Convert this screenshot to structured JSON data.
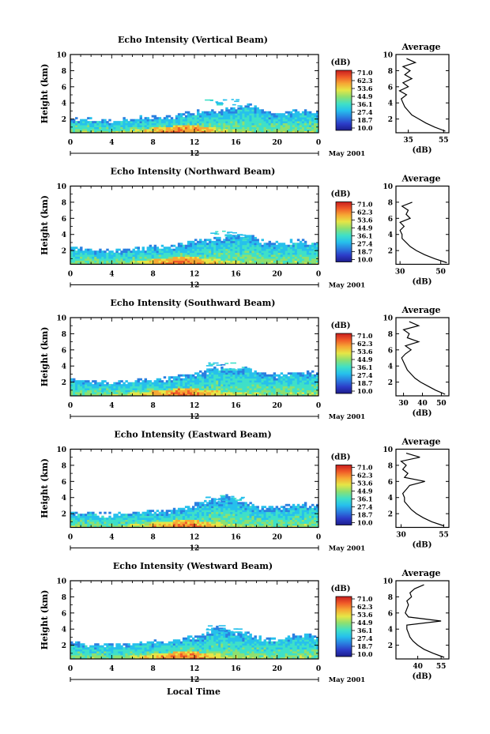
{
  "figure": {
    "xlabel": "Local Time",
    "xrange_label": "12",
    "date": "May 2001",
    "ylabel": "Height (km)",
    "colorbar_unit": "(dB)",
    "colorbar_ticks": [
      "71.0",
      "62.3",
      "53.6",
      "44.9",
      "36.1",
      "27.4",
      "18.7",
      "10.0"
    ],
    "avg_title": "Average",
    "avg_unit": "(dB)"
  },
  "colors": {
    "colormap": [
      "#1c1c8c",
      "#2c3cc8",
      "#2a7fe0",
      "#26c0ec",
      "#3fe0c8",
      "#8ee070",
      "#e6e646",
      "#f6a834",
      "#f05a28",
      "#c81e1e"
    ]
  },
  "chart_data": [
    {
      "type": "heatmap",
      "title": "Echo Intensity (Vertical Beam)",
      "x_ticks": [
        "0",
        "4",
        "8",
        "12",
        "16",
        "20",
        "0"
      ],
      "y_ticks": [
        "2",
        "4",
        "6",
        "8",
        "10"
      ],
      "xlim": [
        0,
        24
      ],
      "ylim": [
        0.3,
        10
      ],
      "clim": [
        10.0,
        71.0
      ],
      "echo_top_km": [
        2.2,
        2.1,
        2.0,
        1.9,
        1.9,
        2.0,
        2.1,
        2.3,
        2.3,
        2.2,
        2.5,
        2.7,
        3.0,
        3.1,
        3.2,
        3.3,
        3.6,
        3.9,
        3.4,
        3.0,
        2.9,
        3.0,
        3.1,
        3.0,
        3.0
      ],
      "avg_profile": {
        "xticks": [
          "35",
          "55"
        ],
        "xlim": [
          28,
          58
        ],
        "height_km": [
          0.5,
          1.0,
          1.5,
          2.0,
          2.5,
          3.0,
          3.5,
          4.0,
          4.5,
          5.0,
          5.5,
          6.0,
          6.5,
          7.0,
          7.5,
          8.0,
          8.5,
          9.0,
          9.5
        ],
        "db": [
          56,
          50,
          45,
          41,
          37,
          35,
          33,
          32,
          31,
          34,
          30,
          35,
          32,
          37,
          33,
          36,
          32,
          39,
          34
        ]
      }
    },
    {
      "type": "heatmap",
      "title": "Echo Intensity (Northward Beam)",
      "x_ticks": [
        "0",
        "4",
        "8",
        "12",
        "16",
        "20",
        "0"
      ],
      "y_ticks": [
        "2",
        "4",
        "6",
        "8",
        "10"
      ],
      "xlim": [
        0,
        24
      ],
      "ylim": [
        0.3,
        10
      ],
      "clim": [
        10.0,
        71.0
      ],
      "echo_top_km": [
        2.6,
        2.4,
        2.2,
        2.1,
        2.1,
        2.2,
        2.4,
        2.5,
        2.6,
        2.5,
        2.7,
        3.0,
        3.2,
        3.4,
        3.6,
        3.7,
        3.9,
        4.1,
        3.4,
        3.0,
        3.1,
        3.2,
        3.3,
        3.2,
        3.1
      ],
      "avg_profile": {
        "xticks": [
          "30",
          "50"
        ],
        "xlim": [
          28,
          54
        ],
        "height_km": [
          0.5,
          1.0,
          1.5,
          2.0,
          2.5,
          3.0,
          3.5,
          4.0,
          4.5,
          5.0,
          5.5,
          6.0,
          6.5,
          7.0,
          7.5,
          8.0
        ],
        "db": [
          53,
          47,
          42,
          38,
          35,
          33,
          31,
          31,
          30,
          32,
          30,
          35,
          33,
          34,
          31,
          36
        ]
      }
    },
    {
      "type": "heatmap",
      "title": "Echo Intensity (Southward Beam)",
      "x_ticks": [
        "0",
        "4",
        "8",
        "12",
        "16",
        "20",
        "0"
      ],
      "y_ticks": [
        "2",
        "4",
        "6",
        "8",
        "10"
      ],
      "xlim": [
        0,
        24
      ],
      "ylim": [
        0.3,
        10
      ],
      "clim": [
        10.0,
        71.0
      ],
      "echo_top_km": [
        2.4,
        2.3,
        2.2,
        2.1,
        2.1,
        2.2,
        2.3,
        2.4,
        2.5,
        2.5,
        2.7,
        3.0,
        3.2,
        3.4,
        3.9,
        4.0,
        3.8,
        3.9,
        3.3,
        3.0,
        3.0,
        3.2,
        3.4,
        3.3,
        3.2
      ],
      "avg_profile": {
        "xticks": [
          "30",
          "40",
          "50"
        ],
        "xlim": [
          26,
          54
        ],
        "height_km": [
          0.5,
          1.0,
          1.5,
          2.0,
          2.5,
          3.0,
          3.5,
          4.0,
          4.5,
          5.0,
          5.5,
          6.0,
          6.5,
          7.0,
          7.5,
          8.0,
          8.5,
          9.0,
          9.5
        ],
        "db": [
          52,
          47,
          43,
          39,
          36,
          34,
          32,
          31,
          30,
          29,
          31,
          34,
          31,
          38,
          32,
          33,
          30,
          38,
          33
        ]
      }
    },
    {
      "type": "heatmap",
      "title": "Echo Intensity (Eastward Beam)",
      "x_ticks": [
        "0",
        "4",
        "8",
        "12",
        "16",
        "20",
        "0"
      ],
      "y_ticks": [
        "2",
        "4",
        "6",
        "8",
        "10"
      ],
      "xlim": [
        0,
        24
      ],
      "ylim": [
        0.3,
        10
      ],
      "clim": [
        10.0,
        71.0
      ],
      "echo_top_km": [
        2.3,
        2.2,
        2.1,
        2.0,
        2.0,
        2.1,
        2.2,
        2.4,
        2.4,
        2.3,
        2.6,
        2.9,
        3.2,
        3.6,
        3.8,
        4.2,
        3.7,
        3.5,
        3.0,
        2.8,
        2.9,
        3.1,
        3.3,
        3.2,
        3.0
      ],
      "avg_profile": {
        "xticks": [
          "30",
          "55"
        ],
        "xlim": [
          27,
          58
        ],
        "height_km": [
          0.5,
          1.0,
          1.5,
          2.0,
          2.5,
          3.0,
          3.5,
          4.0,
          4.5,
          5.0,
          5.5,
          6.0,
          6.5,
          7.0,
          7.5,
          8.0,
          8.5,
          9.0,
          9.5
        ],
        "db": [
          55,
          48,
          43,
          39,
          36,
          34,
          32,
          32,
          31,
          33,
          35,
          44,
          32,
          34,
          31,
          33,
          30,
          41,
          33
        ]
      }
    },
    {
      "type": "heatmap",
      "title": "Echo Intensity (Westward Beam)",
      "x_ticks": [
        "0",
        "4",
        "8",
        "12",
        "16",
        "20",
        "0"
      ],
      "y_ticks": [
        "2",
        "4",
        "6",
        "8",
        "10"
      ],
      "xlim": [
        0,
        24
      ],
      "ylim": [
        0.3,
        10
      ],
      "clim": [
        10.0,
        71.0
      ],
      "echo_top_km": [
        2.4,
        2.3,
        2.2,
        2.1,
        2.1,
        2.2,
        2.3,
        2.5,
        2.6,
        2.5,
        2.8,
        3.0,
        3.2,
        3.4,
        4.4,
        4.0,
        3.6,
        3.5,
        3.0,
        2.9,
        3.0,
        3.2,
        3.4,
        3.3,
        3.1
      ],
      "avg_profile": {
        "xticks": [
          "40",
          "55"
        ],
        "xlim": [
          26,
          60
        ],
        "height_km": [
          0.5,
          1.0,
          1.5,
          2.0,
          2.5,
          3.0,
          3.5,
          4.0,
          4.5,
          5.0,
          5.5,
          6.0,
          6.5,
          7.0,
          7.5,
          8.0,
          8.5,
          9.0,
          9.5
        ],
        "db": [
          57,
          50,
          44,
          40,
          37,
          35,
          34,
          33,
          33,
          55,
          34,
          32,
          33,
          34,
          33,
          36,
          35,
          38,
          44
        ]
      }
    }
  ]
}
